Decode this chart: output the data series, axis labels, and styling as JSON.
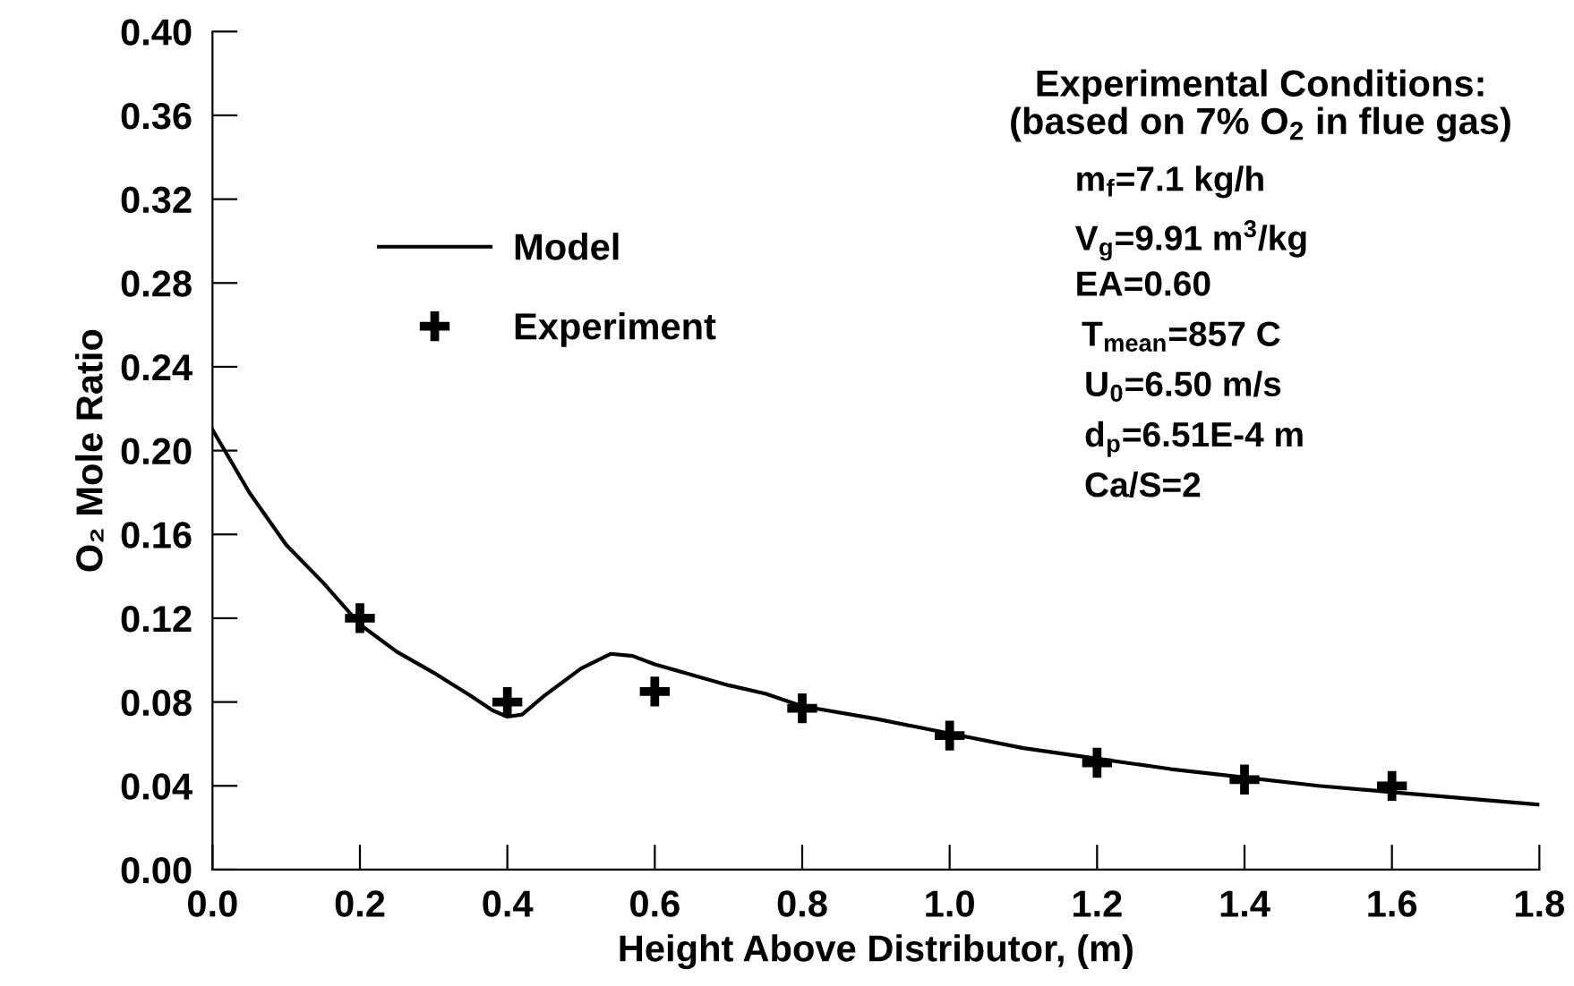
{
  "chart_data": {
    "type": "line",
    "xlabel": "Height Above Distributor, (m)",
    "ylabel": "O₂ Mole Ratio",
    "xlim": [
      0,
      1.8
    ],
    "xticks": [
      {
        "value": 0,
        "label": "0.0"
      },
      0.2,
      0.4,
      0.6,
      0.8,
      {
        "value": 1,
        "label": "1.0"
      },
      1.2,
      1.4,
      1.6,
      1.8
    ],
    "ylim": [
      0,
      0.4
    ],
    "yticks": [
      {
        "value": 0,
        "label": "0.00"
      },
      0.04,
      0.08,
      0.12,
      0.16,
      {
        "value": 0.2,
        "label": "0.20"
      },
      0.24,
      0.28,
      0.32,
      0.36,
      {
        "value": 0.4,
        "label": "0.40"
      }
    ],
    "grid": false,
    "legend": "top left",
    "series": [
      {
        "name": "Model",
        "type": "line",
        "color": "#000000",
        "marker": "none",
        "line_style": "solid",
        "x": [
          0,
          0.05,
          0.1,
          0.15,
          0.2,
          0.25,
          0.3,
          0.35,
          0.38,
          0.4,
          0.42,
          0.45,
          0.5,
          0.54,
          0.57,
          0.6,
          0.65,
          0.7,
          0.75,
          0.8,
          0.9,
          1.0,
          1.1,
          1.2,
          1.3,
          1.4,
          1.5,
          1.6,
          1.7,
          1.8
        ],
        "values": [
          0.21,
          0.18,
          0.155,
          0.137,
          0.117,
          0.104,
          0.094,
          0.083,
          0.076,
          0.073,
          0.074,
          0.083,
          0.096,
          0.103,
          0.102,
          0.098,
          0.093,
          0.088,
          0.084,
          0.078,
          0.072,
          0.065,
          0.058,
          0.053,
          0.048,
          0.044,
          0.04,
          0.037,
          0.034,
          0.031
        ]
      },
      {
        "name": "Experiment",
        "type": "scatter",
        "color": "#000000",
        "marker": "cross",
        "x": [
          0.2,
          0.4,
          0.6,
          0.8,
          1.0,
          1.2,
          1.4,
          1.6
        ],
        "values": [
          0.12,
          0.08,
          0.085,
          0.077,
          0.064,
          0.051,
          0.043,
          0.04
        ]
      }
    ],
    "annotations": [
      "Experimental Conditions:",
      "(based on 7% O$_{2}$ in flue gas)",
      "m$_{f}$=7.1 kg/h",
      "V$_{g}$=9.91 m$^{3}$/kg",
      "EA=0.60",
      "T$_{mean}$=857 C",
      "U$_{0}$=6.50 m/s",
      "d$_{p}$=6.51E-4 m",
      "Ca/S=2"
    ]
  }
}
